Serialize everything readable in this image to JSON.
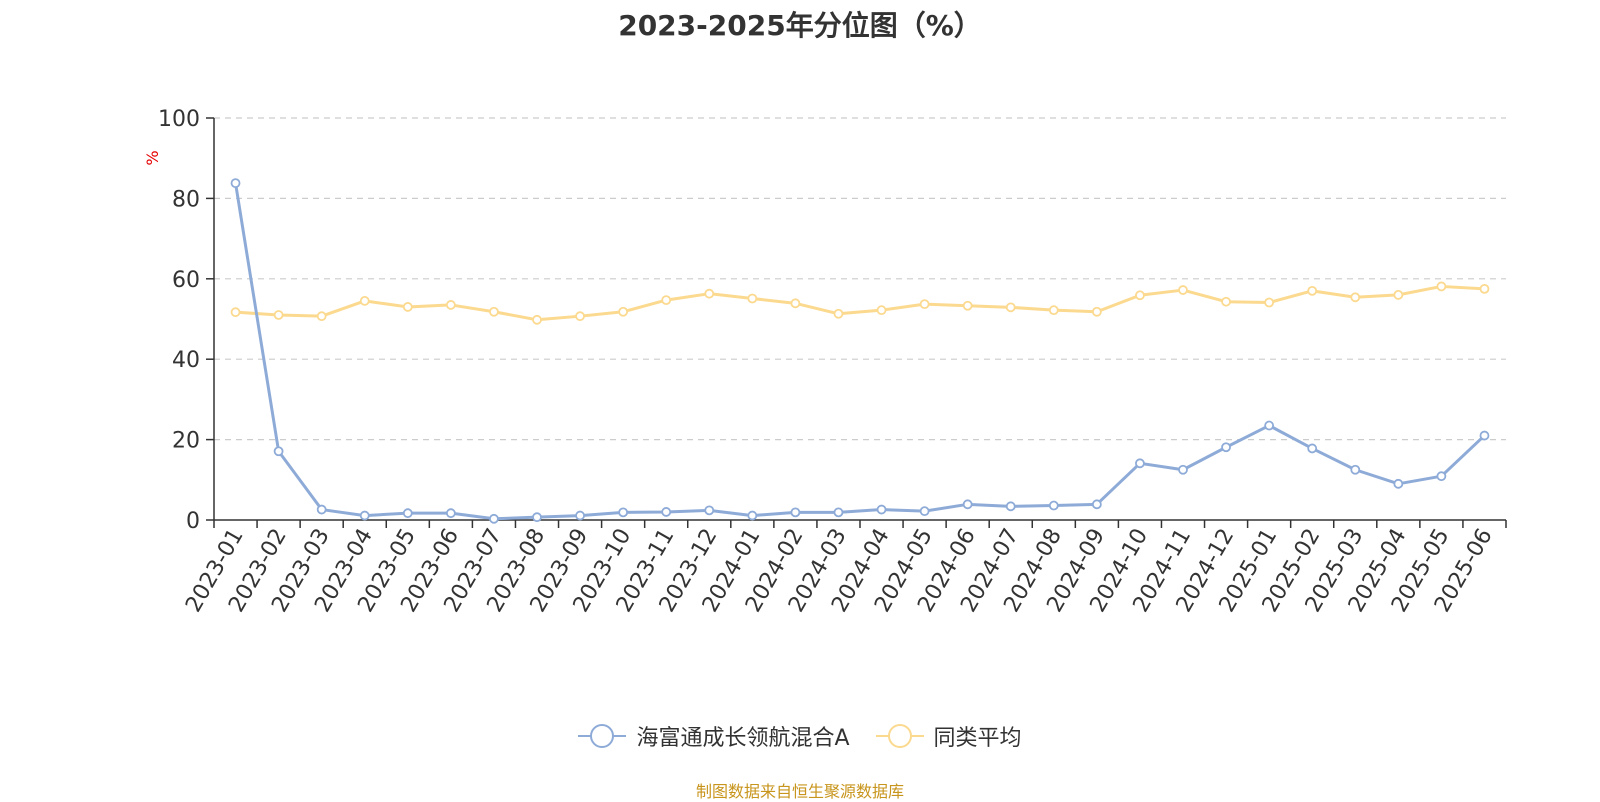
{
  "title": "2023-2025年分位图（%）",
  "source": "制图数据来自恒生聚源数据库",
  "chart_data": {
    "type": "line",
    "ylabel": "%",
    "ylim": [
      0,
      100
    ],
    "yticks": [
      0,
      20,
      40,
      60,
      80,
      100
    ],
    "grid": true,
    "legend_position": "bottom",
    "categories": [
      "2023-01",
      "2023-02",
      "2023-03",
      "2023-04",
      "2023-05",
      "2023-06",
      "2023-07",
      "2023-08",
      "2023-09",
      "2023-10",
      "2023-11",
      "2023-12",
      "2024-01",
      "2024-02",
      "2024-03",
      "2024-04",
      "2024-05",
      "2024-06",
      "2024-07",
      "2024-08",
      "2024-09",
      "2024-10",
      "2024-11",
      "2024-12",
      "2025-01",
      "2025-02",
      "2025-03",
      "2025-04",
      "2025-05",
      "2025-06"
    ],
    "series": [
      {
        "name": "海富通成长领航混合A",
        "color": "#8eabd8",
        "values": [
          83.8,
          17.1,
          2.6,
          1.1,
          1.7,
          1.7,
          0.3,
          0.7,
          1.1,
          1.9,
          2.0,
          2.4,
          1.1,
          1.9,
          1.9,
          2.6,
          2.2,
          3.9,
          3.4,
          3.6,
          3.9,
          14.1,
          12.5,
          18.1,
          23.5,
          17.8,
          12.5,
          9.0,
          10.9,
          21.0
        ]
      },
      {
        "name": "同类平均",
        "color": "#fbd98f",
        "values": [
          51.7,
          51.0,
          50.7,
          54.5,
          53.0,
          53.5,
          51.8,
          49.8,
          50.7,
          51.8,
          54.7,
          56.3,
          55.1,
          53.9,
          51.3,
          52.2,
          53.7,
          53.3,
          52.9,
          52.2,
          51.8,
          55.9,
          57.2,
          54.3,
          54.1,
          57.0,
          55.4,
          56.0,
          58.1,
          57.5
        ]
      }
    ]
  }
}
